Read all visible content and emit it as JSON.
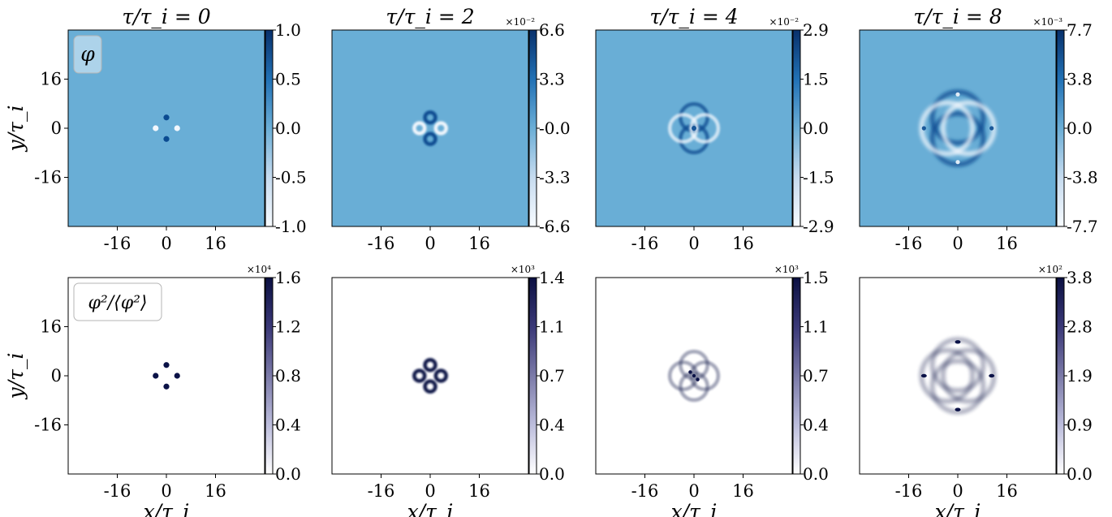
{
  "chart_data": [
    {
      "type": "heatmap",
      "row": "phi",
      "title": "τ/τ_i = 0",
      "panel_label": "φ",
      "ylabel": "y/τ_i",
      "xlabel": "",
      "xticks": [
        "-16",
        "0",
        "16"
      ],
      "yticks": [
        "16",
        "0",
        "-16"
      ],
      "xlim": [
        -32,
        32
      ],
      "ylim": [
        -32,
        32
      ],
      "colorbar": {
        "ticks": [
          "1.0",
          "0.5",
          "0.0",
          "-0.5",
          "-1.0"
        ],
        "exponent": "",
        "range": [
          -1.0,
          1.0
        ]
      },
      "features": [
        {
          "shape": "dot",
          "x": 0,
          "y": 3.5,
          "sign": 1
        },
        {
          "shape": "dot",
          "x": 0,
          "y": -3.5,
          "sign": 1
        },
        {
          "shape": "dot",
          "x": -3.5,
          "y": 0,
          "sign": -1
        },
        {
          "shape": "dot",
          "x": 3.5,
          "y": 0,
          "sign": -1
        }
      ]
    },
    {
      "type": "heatmap",
      "row": "phi",
      "title": "τ/τ_i = 2",
      "panel_label": "",
      "ylabel": "",
      "xlabel": "",
      "xticks": [
        "-16",
        "0",
        "16"
      ],
      "yticks": [],
      "xlim": [
        -32,
        32
      ],
      "ylim": [
        -32,
        32
      ],
      "colorbar": {
        "ticks": [
          "6.6",
          "3.3",
          "-0.0",
          "-3.3",
          "-6.6"
        ],
        "exponent": "×10⁻²",
        "range": [
          -6.6,
          6.6
        ]
      },
      "features": [
        {
          "shape": "ring",
          "x": 0,
          "y": 3.5,
          "r": 1.7,
          "sign": 1
        },
        {
          "shape": "ring",
          "x": 0,
          "y": -3.5,
          "r": 1.7,
          "sign": 1
        },
        {
          "shape": "ring",
          "x": -3.5,
          "y": 0,
          "r": 1.7,
          "sign": -1
        },
        {
          "shape": "ring",
          "x": 3.5,
          "y": 0,
          "r": 1.7,
          "sign": -1
        }
      ]
    },
    {
      "type": "heatmap",
      "row": "phi",
      "title": "τ/τ_i = 4",
      "panel_label": "",
      "ylabel": "",
      "xlabel": "",
      "xticks": [
        "-16",
        "0",
        "16"
      ],
      "yticks": [],
      "xlim": [
        -32,
        32
      ],
      "ylim": [
        -32,
        32
      ],
      "colorbar": {
        "ticks": [
          "2.9",
          "1.5",
          "0.0",
          "-1.5",
          "-2.9"
        ],
        "exponent": "×10⁻²",
        "range": [
          -2.9,
          2.9
        ]
      },
      "features": [
        {
          "shape": "ring",
          "x": 0,
          "y": 3.5,
          "r": 4.4,
          "sign": 1
        },
        {
          "shape": "ring",
          "x": 0,
          "y": -3.5,
          "r": 4.4,
          "sign": 1
        },
        {
          "shape": "ring",
          "x": -3.5,
          "y": 0,
          "r": 4.4,
          "sign": -1
        },
        {
          "shape": "ring",
          "x": 3.5,
          "y": 0,
          "r": 4.4,
          "sign": -1
        }
      ]
    },
    {
      "type": "heatmap",
      "row": "phi",
      "title": "τ/τ_i = 8",
      "panel_label": "",
      "ylabel": "",
      "xlabel": "",
      "xticks": [
        "-16",
        "0",
        "16"
      ],
      "yticks": [],
      "xlim": [
        -32,
        32
      ],
      "ylim": [
        -32,
        32
      ],
      "colorbar": {
        "ticks": [
          "7.7",
          "3.8",
          "0.0",
          "-3.8",
          "-7.7"
        ],
        "exponent": "×10⁻³",
        "range": [
          -7.7,
          7.7
        ]
      },
      "features": [
        {
          "shape": "ring",
          "x": 0,
          "y": 3.5,
          "r": 8.3,
          "sign": 1
        },
        {
          "shape": "ring",
          "x": 0,
          "y": -3.5,
          "r": 8.3,
          "sign": 1
        },
        {
          "shape": "ring",
          "x": -3.5,
          "y": 0,
          "r": 8.3,
          "sign": -1
        },
        {
          "shape": "ring",
          "x": 3.5,
          "y": 0,
          "r": 8.3,
          "sign": -1
        }
      ]
    },
    {
      "type": "heatmap",
      "row": "energy",
      "title": "",
      "panel_label": "φ²/⟨φ²⟩",
      "ylabel": "y/τ_i",
      "xlabel": "x/τ_i",
      "xticks": [
        "-16",
        "0",
        "16"
      ],
      "yticks": [
        "16",
        "0",
        "-16"
      ],
      "xlim": [
        -32,
        32
      ],
      "ylim": [
        -32,
        32
      ],
      "colorbar": {
        "ticks": [
          "1.6",
          "1.2",
          "0.8",
          "0.4",
          "0.0"
        ],
        "exponent": "×10⁴",
        "range": [
          0,
          1.6
        ]
      },
      "features": [
        {
          "shape": "dot",
          "x": 0,
          "y": 3.5,
          "sign": 1
        },
        {
          "shape": "dot",
          "x": 0,
          "y": -3.5,
          "sign": 1
        },
        {
          "shape": "dot",
          "x": -3.5,
          "y": 0,
          "sign": 1
        },
        {
          "shape": "dot",
          "x": 3.5,
          "y": 0,
          "sign": 1
        }
      ]
    },
    {
      "type": "heatmap",
      "row": "energy",
      "title": "",
      "panel_label": "",
      "ylabel": "",
      "xlabel": "x/τ_i",
      "xticks": [
        "-16",
        "0",
        "16"
      ],
      "yticks": [],
      "xlim": [
        -32,
        32
      ],
      "ylim": [
        -32,
        32
      ],
      "colorbar": {
        "ticks": [
          "1.4",
          "1.1",
          "0.7",
          "0.4",
          "0.0"
        ],
        "exponent": "×10³",
        "range": [
          0,
          1.4
        ]
      },
      "features": [
        {
          "shape": "ring",
          "x": 0,
          "y": 3.5,
          "r": 1.7,
          "sign": 1
        },
        {
          "shape": "ring",
          "x": 0,
          "y": -3.5,
          "r": 1.7,
          "sign": 1
        },
        {
          "shape": "ring",
          "x": -3.5,
          "y": 0,
          "r": 1.7,
          "sign": 1
        },
        {
          "shape": "ring",
          "x": 3.5,
          "y": 0,
          "r": 1.7,
          "sign": 1
        }
      ]
    },
    {
      "type": "heatmap",
      "row": "energy",
      "title": "",
      "panel_label": "",
      "ylabel": "",
      "xlabel": "x/τ_i",
      "xticks": [
        "-16",
        "0",
        "16"
      ],
      "yticks": [],
      "xlim": [
        -32,
        32
      ],
      "ylim": [
        -32,
        32
      ],
      "colorbar": {
        "ticks": [
          "1.5",
          "1.1",
          "0.7",
          "0.4",
          "0.0"
        ],
        "exponent": "×10³",
        "range": [
          0,
          1.5
        ]
      },
      "features": [
        {
          "shape": "ring",
          "x": 0,
          "y": 3.5,
          "r": 4.4,
          "sign": 1
        },
        {
          "shape": "ring",
          "x": 0,
          "y": -3.5,
          "r": 4.4,
          "sign": 1
        },
        {
          "shape": "ring",
          "x": -3.5,
          "y": 0,
          "r": 4.4,
          "sign": 1
        },
        {
          "shape": "ring",
          "x": 3.5,
          "y": 0,
          "r": 4.4,
          "sign": 1
        }
      ]
    },
    {
      "type": "heatmap",
      "row": "energy",
      "title": "",
      "panel_label": "",
      "ylabel": "",
      "xlabel": "x/τ_i",
      "xticks": [
        "-16",
        "0",
        "16"
      ],
      "yticks": [],
      "xlim": [
        -32,
        32
      ],
      "ylim": [
        -32,
        32
      ],
      "colorbar": {
        "ticks": [
          "3.8",
          "2.8",
          "1.9",
          "0.9",
          "0.0"
        ],
        "exponent": "×10²",
        "range": [
          0,
          3.8
        ]
      },
      "features": [
        {
          "shape": "ring",
          "x": 0,
          "y": 3.5,
          "r": 8.3,
          "sign": 1
        },
        {
          "shape": "ring",
          "x": 0,
          "y": -3.5,
          "r": 8.3,
          "sign": 1
        },
        {
          "shape": "ring",
          "x": -3.5,
          "y": 0,
          "r": 8.3,
          "sign": 1
        },
        {
          "shape": "ring",
          "x": 3.5,
          "y": 0,
          "r": 8.3,
          "sign": 1
        }
      ]
    }
  ],
  "colors": {
    "phi_background": "#69aed6",
    "phi_positive": "#0b4b91",
    "phi_negative": "#f2f7fd",
    "energy_background": "#ffffff",
    "energy_peak": "#0b1247",
    "cbar_blues": [
      "#f7fbff",
      "#c6dbef",
      "#6baed6",
      "#2171b5",
      "#08306b"
    ],
    "cbar_purples": [
      "#ffffff",
      "#bcbddc",
      "#7b7aa8",
      "#3a3877",
      "#0b1042"
    ]
  }
}
